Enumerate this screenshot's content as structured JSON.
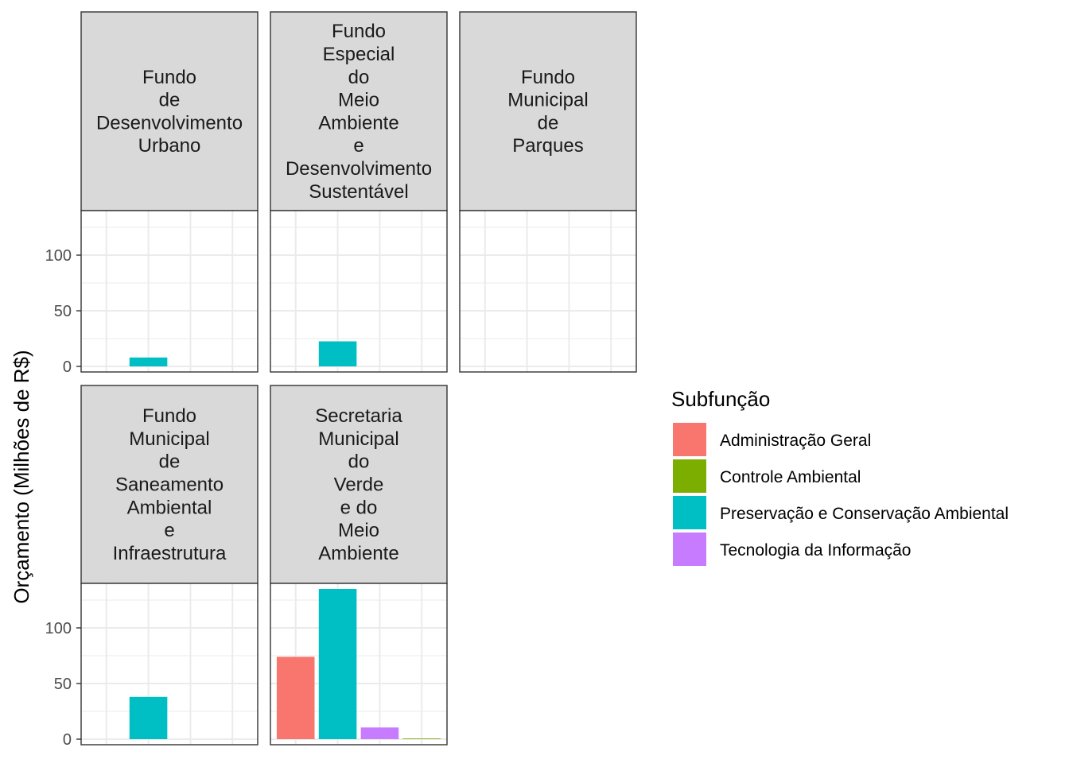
{
  "chart_data": {
    "type": "bar",
    "ylabel": "Orçamento (Milhões de R$)",
    "ylim": [
      -5,
      140
    ],
    "yticks": [
      0,
      50,
      100
    ],
    "categories": [
      "Administração Geral",
      "Preservação e Conservação Ambiental",
      "Tecnologia da Informação",
      "Controle Ambiental"
    ],
    "panels": [
      {
        "title_lines": [
          "Fundo",
          "de",
          "Desenvolvimento",
          "Urbano"
        ],
        "values": [
          null,
          8,
          null,
          null
        ]
      },
      {
        "title_lines": [
          "Fundo",
          "Especial",
          "do",
          "Meio",
          "Ambiente",
          "e",
          "Desenvolvimento",
          "Sustentável"
        ],
        "values": [
          null,
          22.5,
          null,
          null
        ]
      },
      {
        "title_lines": [
          "Fundo",
          "Municipal",
          "de",
          "Parques"
        ],
        "values": [
          null,
          null,
          null,
          null
        ]
      },
      {
        "title_lines": [
          "Fundo",
          "Municipal",
          "de",
          "Saneamento",
          "Ambiental",
          "e",
          "Infraestrutura"
        ],
        "values": [
          null,
          38,
          null,
          null
        ]
      },
      {
        "title_lines": [
          "Secretaria",
          "Municipal",
          "do",
          "Verde",
          "e do",
          "Meio",
          "Ambiente"
        ],
        "values": [
          74,
          135,
          10.5,
          0.6
        ]
      }
    ],
    "legend": {
      "title": "Subfunção",
      "position": "right",
      "entries": [
        {
          "label": "Administração Geral",
          "color": "#F8766D"
        },
        {
          "label": "Controle Ambiental",
          "color": "#7CAE00"
        },
        {
          "label": "Preservação e Conservação Ambiental",
          "color": "#00BFC4"
        },
        {
          "label": "Tecnologia da Informação",
          "color": "#C77CFF"
        }
      ]
    },
    "category_colors": [
      "#F8766D",
      "#00BFC4",
      "#C77CFF",
      "#7CAE00"
    ],
    "grid": true
  }
}
